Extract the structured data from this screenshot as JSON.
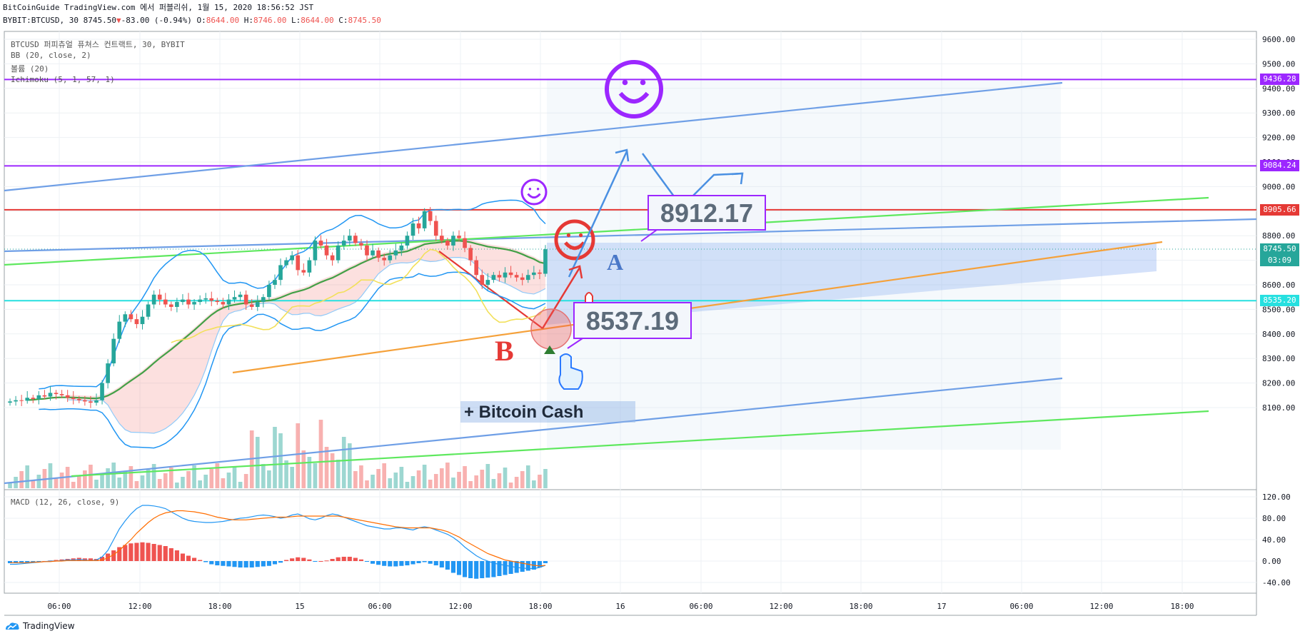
{
  "header": {
    "line1": "BitCoinGuide TradingView.com 에서 퍼블리쉬, 1월 15, 2020 18:56:52 JST",
    "symbol": "BYBIT:BTCUSD, 30",
    "last": "8745.50",
    "change_arrow": "▼",
    "change": "-83.00 (-0.94%)",
    "o_label": "O:",
    "o_value": "8644.00",
    "h_label": "H:",
    "h_value": "8746.00",
    "l_label": "L:",
    "l_value": "8644.00",
    "c_label": "C:",
    "c_value": "8745.50"
  },
  "legend": {
    "title": "BTCUSD 퍼피츄얼 퓨쳐스 컨트랙트, 30, BYBIT",
    "bb": "BB (20, close, 2)",
    "volume": "볼륨 (20)",
    "ichimoku": "Ichimoku (5, 1, 57, 1)",
    "macd": "MACD (12, 26, close, 9)"
  },
  "annotations": {
    "box1": "8912.17",
    "box2": "8537.19",
    "bitcoin_cash": "+ Bitcoin Cash",
    "label_a": "A",
    "label_b": "B"
  },
  "price_tags": [
    {
      "value": "9436.28",
      "color": "#9c27ff"
    },
    {
      "value": "9084.24",
      "color": "#9c27ff"
    },
    {
      "value": "8905.66",
      "color": "#e53935"
    },
    {
      "value": "8745.50",
      "color": "#26a69a"
    },
    {
      "value": "03:09",
      "color": "#26a69a"
    },
    {
      "value": "8535.20",
      "color": "#26e0e0"
    }
  ],
  "footer": {
    "brand": "TradingView"
  },
  "chart_data": [
    {
      "type": "candlestick",
      "title": "BTCUSD 퍼피츄얼 퓨쳐스 컨트랙트, 30, BYBIT",
      "price_axis": [
        "9600.00",
        "9500.00",
        "9400.00",
        "9300.00",
        "9200.00",
        "9100.00",
        "9000.00",
        "8900.00",
        "8800.00",
        "8700.00",
        "8600.00",
        "8500.00",
        "8400.00",
        "8300.00",
        "8200.00",
        "8100.00"
      ],
      "time_axis": [
        "06:00",
        "12:00",
        "18:00",
        "15",
        "06:00",
        "12:00",
        "18:00",
        "16",
        "06:00",
        "12:00",
        "18:00",
        "17",
        "06:00",
        "12:00",
        "18:00"
      ],
      "ylim": [
        8050,
        9640
      ],
      "horizontal_levels": [
        {
          "value": 9436.28,
          "color": "#9c27ff"
        },
        {
          "value": 9084.24,
          "color": "#9c27ff"
        },
        {
          "value": 8905.66,
          "color": "#e53935"
        },
        {
          "value": 8535.2,
          "color": "#26e0e0"
        }
      ],
      "close_series": [
        8125,
        8130,
        8128,
        8140,
        8135,
        8150,
        8145,
        8160,
        8155,
        8150,
        8140,
        8135,
        8130,
        8125,
        8120,
        8130,
        8200,
        8280,
        8380,
        8450,
        8480,
        8460,
        8440,
        8470,
        8520,
        8560,
        8540,
        8520,
        8510,
        8530,
        8540,
        8520,
        8530,
        8540,
        8545,
        8535,
        8530,
        8520,
        8540,
        8550,
        8560,
        8520,
        8510,
        8530,
        8550,
        8600,
        8620,
        8680,
        8700,
        8720,
        8660,
        8650,
        8700,
        8780,
        8760,
        8720,
        8700,
        8760,
        8780,
        8800,
        8770,
        8760,
        8720,
        8740,
        8710,
        8700,
        8720,
        8740,
        8760,
        8800,
        8850,
        8830,
        8900,
        8860,
        8800,
        8780,
        8760,
        8800,
        8790,
        8750,
        8700,
        8640,
        8600,
        8620,
        8640,
        8630,
        8650,
        8640,
        8630,
        8620,
        8640,
        8650,
        8645,
        8745
      ]
    },
    {
      "type": "macd",
      "title": "MACD (12, 26, close, 9)",
      "y_axis": [
        "120.00",
        "80.00",
        "40.00",
        "0.00",
        "-40.00"
      ],
      "ylim": [
        -40,
        120
      ],
      "histogram": [
        -4,
        -4,
        -3,
        -3,
        -2,
        -1,
        0,
        1,
        2,
        3,
        4,
        5,
        6,
        5,
        5,
        4,
        8,
        14,
        20,
        26,
        30,
        33,
        34,
        35,
        34,
        32,
        30,
        28,
        24,
        20,
        14,
        10,
        6,
        2,
        -2,
        -6,
        -8,
        -9,
        -10,
        -11,
        -12,
        -12,
        -12,
        -11,
        -10,
        -9,
        -6,
        -3,
        2,
        5,
        7,
        6,
        3,
        -1,
        0,
        1,
        4,
        7,
        8,
        8,
        6,
        3,
        -1,
        -5,
        -7,
        -9,
        -10,
        -10,
        -9,
        -8,
        -6,
        -4,
        -2,
        -5,
        -8,
        -12,
        -16,
        -22,
        -26,
        -30,
        -32,
        -33,
        -32,
        -31,
        -30,
        -28,
        -26,
        -24,
        -22,
        -20,
        -18,
        -16,
        -12,
        -4
      ],
      "series": [
        {
          "name": "MACD",
          "values": [
            -6,
            -6,
            -5,
            -4,
            -3,
            -2,
            -1,
            0,
            0,
            1,
            2,
            2,
            3,
            2,
            1,
            2,
            8,
            20,
            40,
            60,
            75,
            88,
            98,
            104,
            104,
            103,
            101,
            98,
            92,
            86,
            80,
            76,
            74,
            73,
            72,
            72,
            73,
            74,
            76,
            78,
            80,
            81,
            83,
            85,
            86,
            85,
            83,
            80,
            82,
            86,
            88,
            84,
            79,
            77,
            80,
            85,
            88,
            86,
            82,
            78,
            74,
            70,
            66,
            64,
            62,
            60,
            60,
            62,
            62,
            60,
            58,
            62,
            64,
            62,
            58,
            54,
            50,
            44,
            36,
            26,
            18,
            10,
            4,
            0,
            -4,
            -6,
            -8,
            -10,
            -12,
            -13,
            -14,
            -14,
            -12,
            -8
          ]
        },
        {
          "name": "Signal",
          "values": [
            -3,
            -3,
            -3,
            -3,
            -2,
            -2,
            -1,
            -1,
            0,
            0,
            1,
            1,
            1,
            1,
            1,
            1,
            2,
            6,
            12,
            20,
            30,
            40,
            52,
            62,
            72,
            80,
            86,
            90,
            92,
            94,
            94,
            93,
            92,
            90,
            88,
            85,
            82,
            80,
            78,
            77,
            77,
            77,
            78,
            79,
            80,
            81,
            82,
            82,
            82,
            83,
            84,
            84,
            84,
            84,
            84,
            84,
            84,
            84,
            82,
            80,
            78,
            76,
            74,
            72,
            70,
            68,
            66,
            64,
            63,
            62,
            62,
            62,
            62,
            62,
            60,
            58,
            55,
            50,
            45,
            38,
            32,
            26,
            20,
            14,
            10,
            6,
            2,
            0,
            -2,
            -4,
            -6,
            -8,
            -9,
            -8
          ]
        }
      ]
    }
  ]
}
